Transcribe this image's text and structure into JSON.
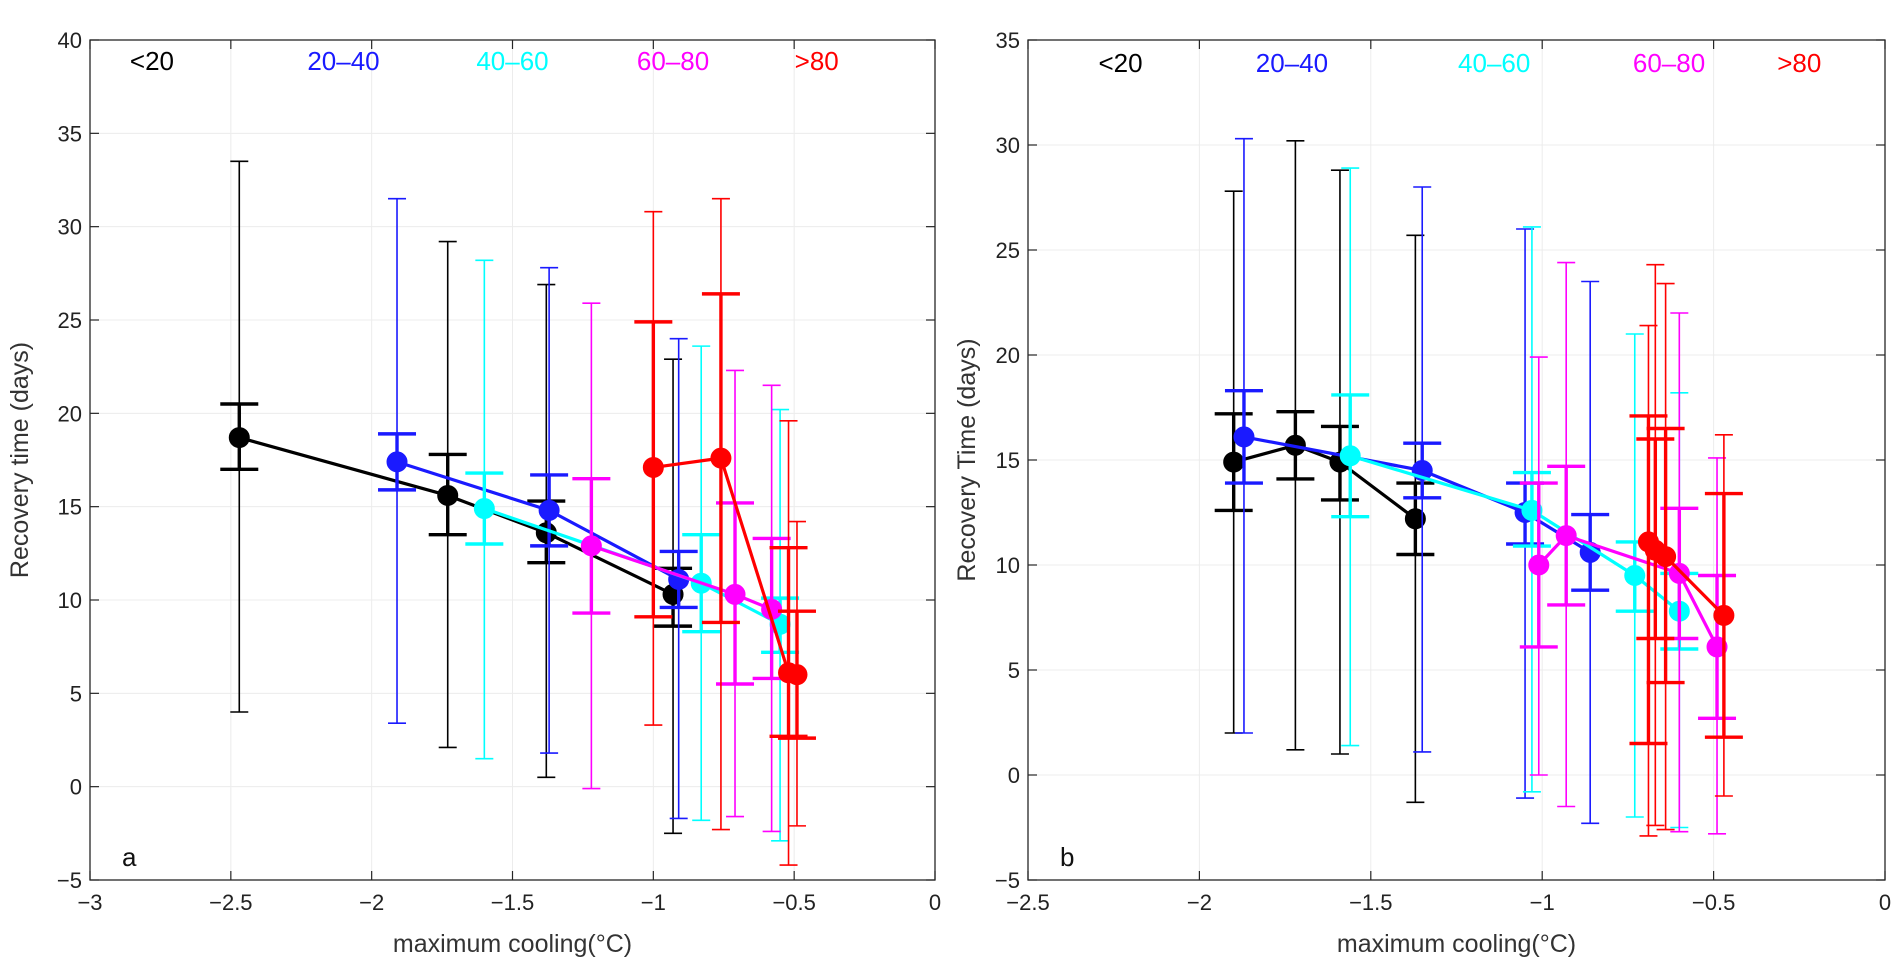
{
  "chart_data": [
    {
      "type": "scatter",
      "panel_label": "a",
      "xlabel": "maximum cooling(°C)",
      "ylabel": "Recovery time (days)",
      "xlim": [
        -3,
        0
      ],
      "ylim": [
        -5,
        40
      ],
      "xticks": [
        -3,
        -2.5,
        -2,
        -1.5,
        -1,
        -0.5,
        0
      ],
      "xtick_labels": [
        "−3",
        "−2.5",
        "−2",
        "−1.5",
        "−1",
        "−0.5",
        "0"
      ],
      "yticks": [
        -5,
        0,
        5,
        10,
        15,
        20,
        25,
        30,
        35,
        40
      ],
      "ytick_labels": [
        "−5",
        "0",
        "5",
        "10",
        "15",
        "20",
        "25",
        "30",
        "35",
        "40"
      ],
      "grid": true,
      "legend_position": "top",
      "legend": [
        {
          "label": "<20",
          "color": "#000000",
          "x": -2.78
        },
        {
          "label": "20–40",
          "color": "#1a1aff",
          "x": -2.1
        },
        {
          "label": "40–60",
          "color": "#00ffff",
          "x": -1.5
        },
        {
          "label": "60–80",
          "color": "#ff00ff",
          "x": -0.93
        },
        {
          "label": ">80",
          "color": "#ff0000",
          "x": -0.42
        }
      ],
      "series": [
        {
          "name": "<20",
          "color": "#000000",
          "points": [
            {
              "x": -2.47,
              "y": 18.7,
              "se": [
                17.0,
                20.5
              ],
              "range": [
                4.0,
                33.5
              ]
            },
            {
              "x": -1.73,
              "y": 15.6,
              "se": [
                13.5,
                17.8
              ],
              "range": [
                2.1,
                29.2
              ]
            },
            {
              "x": -1.38,
              "y": 13.6,
              "se": [
                12.0,
                15.3
              ],
              "range": [
                0.5,
                26.9
              ]
            },
            {
              "x": -0.93,
              "y": 10.3,
              "se": [
                8.6,
                11.7
              ],
              "range": [
                -2.5,
                22.9
              ]
            }
          ]
        },
        {
          "name": "20–40",
          "color": "#1a1aff",
          "points": [
            {
              "x": -1.91,
              "y": 17.4,
              "se": [
                15.9,
                18.9
              ],
              "range": [
                3.4,
                31.5
              ]
            },
            {
              "x": -1.37,
              "y": 14.8,
              "se": [
                12.9,
                16.7
              ],
              "range": [
                1.8,
                27.8
              ]
            },
            {
              "x": -0.91,
              "y": 11.1,
              "se": [
                9.6,
                12.6
              ],
              "range": [
                -1.7,
                24.0
              ]
            }
          ]
        },
        {
          "name": "40–60",
          "color": "#00ffff",
          "points": [
            {
              "x": -1.6,
              "y": 14.9,
              "se": [
                13.0,
                16.8
              ],
              "range": [
                1.5,
                28.2
              ]
            },
            {
              "x": -0.83,
              "y": 10.9,
              "se": [
                8.3,
                13.5
              ],
              "range": [
                -1.8,
                23.6
              ]
            },
            {
              "x": -0.55,
              "y": 8.7,
              "se": [
                7.2,
                10.1
              ],
              "range": [
                -2.9,
                20.2
              ]
            }
          ]
        },
        {
          "name": "60–80",
          "color": "#ff00ff",
          "points": [
            {
              "x": -1.22,
              "y": 12.9,
              "se": [
                9.3,
                16.5
              ],
              "range": [
                -0.1,
                25.9
              ]
            },
            {
              "x": -0.71,
              "y": 10.3,
              "se": [
                5.5,
                15.2
              ],
              "range": [
                -1.6,
                22.3
              ]
            },
            {
              "x": -0.58,
              "y": 9.5,
              "se": [
                5.8,
                13.3
              ],
              "range": [
                -2.4,
                21.5
              ]
            }
          ]
        },
        {
          "name": ">80",
          "color": "#ff0000",
          "points": [
            {
              "x": -1.0,
              "y": 17.1,
              "se": [
                9.1,
                24.9
              ],
              "range": [
                3.3,
                30.8
              ]
            },
            {
              "x": -0.76,
              "y": 17.6,
              "se": [
                8.8,
                26.4
              ],
              "range": [
                -2.3,
                31.5
              ]
            },
            {
              "x": -0.52,
              "y": 6.1,
              "se": [
                2.7,
                12.8
              ],
              "range": [
                -4.2,
                19.6
              ]
            },
            {
              "x": -0.49,
              "y": 6.0,
              "se": [
                2.6,
                9.4
              ],
              "range": [
                -2.1,
                14.2
              ]
            }
          ]
        }
      ]
    },
    {
      "type": "scatter",
      "panel_label": "b",
      "xlabel": "maximum cooling(°C)",
      "ylabel": "Recovery Time (days)",
      "xlim": [
        -2.5,
        0
      ],
      "ylim": [
        -5,
        35
      ],
      "xticks": [
        -2.5,
        -2,
        -1.5,
        -1,
        -0.5,
        0
      ],
      "xtick_labels": [
        "−2.5",
        "−2",
        "−1.5",
        "−1",
        "−0.5",
        "0"
      ],
      "yticks": [
        -5,
        0,
        5,
        10,
        15,
        20,
        25,
        30,
        35
      ],
      "ytick_labels": [
        "−5",
        "0",
        "5",
        "10",
        "15",
        "20",
        "25",
        "30",
        "35"
      ],
      "grid": true,
      "legend_position": "top",
      "legend": [
        {
          "label": "<20",
          "color": "#000000",
          "x": -2.23
        },
        {
          "label": "20–40",
          "color": "#1a1aff",
          "x": -1.73
        },
        {
          "label": "40–60",
          "color": "#00ffff",
          "x": -1.14
        },
        {
          "label": "60–80",
          "color": "#ff00ff",
          "x": -0.63
        },
        {
          "label": ">80",
          "color": "#ff0000",
          "x": -0.25
        }
      ],
      "series": [
        {
          "name": "<20",
          "color": "#000000",
          "points": [
            {
              "x": -1.9,
              "y": 14.9,
              "se": [
                12.6,
                17.2
              ],
              "range": [
                2.0,
                27.8
              ]
            },
            {
              "x": -1.72,
              "y": 15.7,
              "se": [
                14.1,
                17.3
              ],
              "range": [
                1.2,
                30.2
              ]
            },
            {
              "x": -1.59,
              "y": 14.9,
              "se": [
                13.1,
                16.6
              ],
              "range": [
                1.0,
                28.8
              ]
            },
            {
              "x": -1.37,
              "y": 12.2,
              "se": [
                10.5,
                13.9
              ],
              "range": [
                -1.3,
                25.7
              ]
            }
          ]
        },
        {
          "name": "20–40",
          "color": "#1a1aff",
          "points": [
            {
              "x": -1.87,
              "y": 16.1,
              "se": [
                13.9,
                18.3
              ],
              "range": [
                2.0,
                30.3
              ]
            },
            {
              "x": -1.35,
              "y": 14.5,
              "se": [
                13.2,
                15.8
              ],
              "range": [
                1.1,
                28.0
              ]
            },
            {
              "x": -1.05,
              "y": 12.5,
              "se": [
                11.0,
                13.9
              ],
              "range": [
                -1.1,
                26.0
              ]
            },
            {
              "x": -0.86,
              "y": 10.6,
              "se": [
                8.8,
                12.4
              ],
              "range": [
                -2.3,
                23.5
              ]
            }
          ]
        },
        {
          "name": "40–60",
          "color": "#00ffff",
          "points": [
            {
              "x": -1.56,
              "y": 15.2,
              "se": [
                12.3,
                18.1
              ],
              "range": [
                1.4,
                28.9
              ]
            },
            {
              "x": -1.03,
              "y": 12.6,
              "se": [
                10.9,
                14.4
              ],
              "range": [
                -0.8,
                26.1
              ]
            },
            {
              "x": -0.73,
              "y": 9.5,
              "se": [
                7.8,
                11.1
              ],
              "range": [
                -2.0,
                21.0
              ]
            },
            {
              "x": -0.6,
              "y": 7.8,
              "se": [
                6.0,
                9.6
              ],
              "range": [
                -2.5,
                18.2
              ]
            }
          ]
        },
        {
          "name": "60–80",
          "color": "#ff00ff",
          "points": [
            {
              "x": -1.01,
              "y": 10.0,
              "se": [
                6.1,
                13.9
              ],
              "range": [
                0.0,
                19.9
              ]
            },
            {
              "x": -0.93,
              "y": 11.4,
              "se": [
                8.1,
                14.7
              ],
              "range": [
                -1.5,
                24.4
              ]
            },
            {
              "x": -0.6,
              "y": 9.6,
              "se": [
                6.5,
                12.7
              ],
              "range": [
                -2.7,
                22.0
              ]
            },
            {
              "x": -0.49,
              "y": 6.1,
              "se": [
                2.7,
                9.5
              ],
              "range": [
                -2.8,
                15.1
              ]
            }
          ]
        },
        {
          "name": ">80",
          "color": "#ff0000",
          "points": [
            {
              "x": -0.69,
              "y": 11.1,
              "se": [
                1.5,
                17.1
              ],
              "range": [
                -2.9,
                21.4
              ]
            },
            {
              "x": -0.67,
              "y": 10.7,
              "se": [
                6.5,
                16.0
              ],
              "range": [
                -2.4,
                24.3
              ]
            },
            {
              "x": -0.64,
              "y": 10.4,
              "se": [
                4.4,
                16.5
              ],
              "range": [
                -2.6,
                23.4
              ]
            },
            {
              "x": -0.47,
              "y": 7.6,
              "se": [
                1.8,
                13.4
              ],
              "range": [
                -1.0,
                16.2
              ]
            }
          ]
        }
      ]
    }
  ]
}
